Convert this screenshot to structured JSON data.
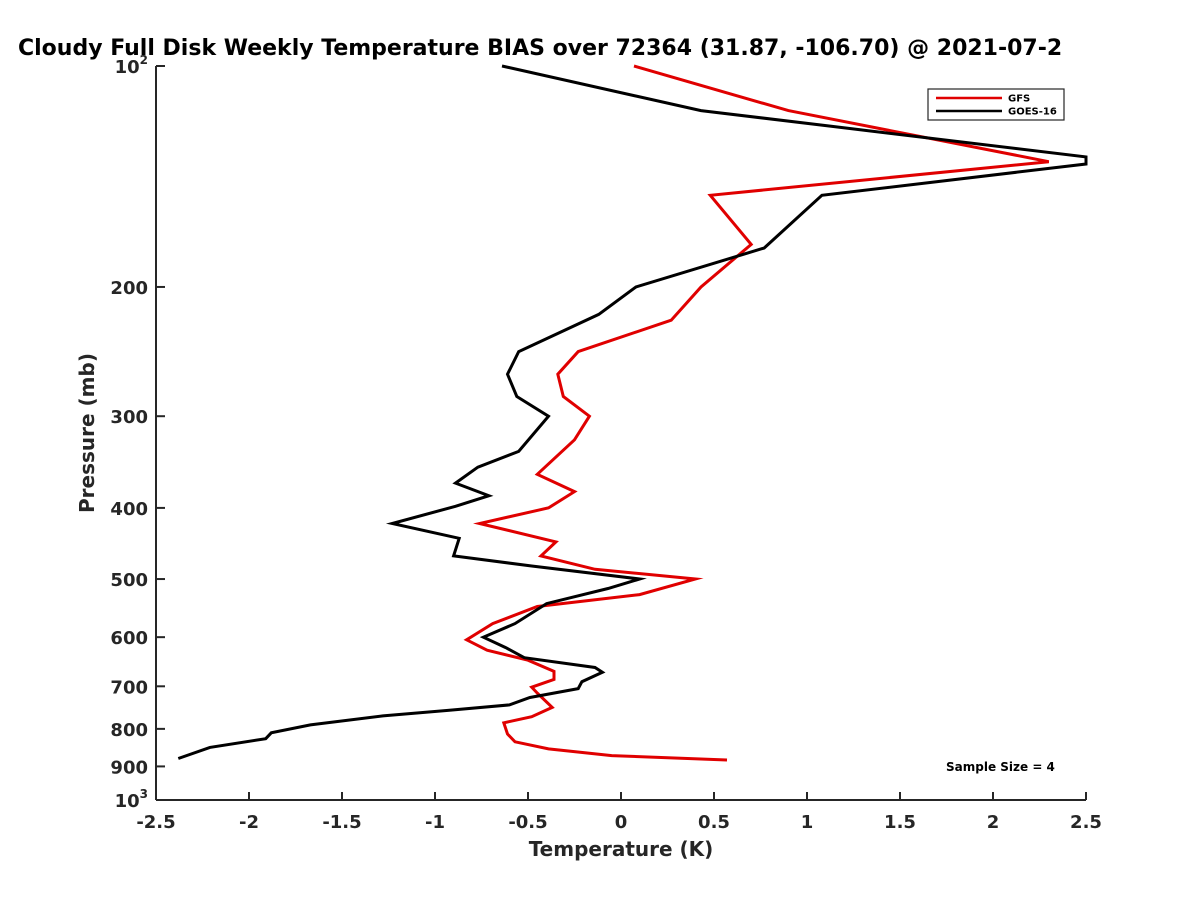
{
  "chart_data": {
    "type": "line",
    "title": "Cloudy Full Disk Weekly Temperature BIAS over 72364 (31.87, -106.70) @ 2021-07-2",
    "xlabel": "Temperature (K)",
    "ylabel": "Pressure (mb)",
    "xlim": [
      -2.5,
      2.5
    ],
    "ylim": [
      100,
      1000
    ],
    "y_scale": "log",
    "y_reversed": true,
    "grid": false,
    "legend_position": "top-right",
    "x_ticks": [
      "-2.5",
      "-2",
      "-1.5",
      "-1",
      "-0.5",
      "0",
      "0.5",
      "1",
      "1.5",
      "2",
      "2.5"
    ],
    "y_ticks": [
      {
        "value": 100,
        "base": "10",
        "exp": "2"
      },
      {
        "value": 200,
        "label": "200"
      },
      {
        "value": 300,
        "label": "300"
      },
      {
        "value": 400,
        "label": "400"
      },
      {
        "value": 500,
        "label": "500"
      },
      {
        "value": 600,
        "label": "600"
      },
      {
        "value": 700,
        "label": "700"
      },
      {
        "value": 800,
        "label": "800"
      },
      {
        "value": 900,
        "label": "900"
      },
      {
        "value": 1000,
        "base": "10",
        "exp": "3"
      }
    ],
    "series": [
      {
        "name": "GFS",
        "color": "#e00000",
        "points": [
          [
            0.07,
            100
          ],
          [
            0.9,
            115
          ],
          [
            2.3,
            135
          ],
          [
            0.48,
            150
          ],
          [
            0.7,
            175
          ],
          [
            0.43,
            200
          ],
          [
            0.27,
            222
          ],
          [
            -0.23,
            245
          ],
          [
            -0.34,
            263
          ],
          [
            -0.31,
            282
          ],
          [
            -0.17,
            300
          ],
          [
            -0.25,
            323
          ],
          [
            -0.45,
            360
          ],
          [
            -0.25,
            380
          ],
          [
            -0.39,
            400
          ],
          [
            -0.76,
            420
          ],
          [
            -0.35,
            445
          ],
          [
            -0.43,
            465
          ],
          [
            -0.14,
            485
          ],
          [
            0.4,
            500
          ],
          [
            0.1,
            525
          ],
          [
            -0.45,
            545
          ],
          [
            -0.69,
            575
          ],
          [
            -0.83,
            605
          ],
          [
            -0.72,
            625
          ],
          [
            -0.5,
            645
          ],
          [
            -0.36,
            668
          ],
          [
            -0.36,
            685
          ],
          [
            -0.48,
            702
          ],
          [
            -0.45,
            715
          ],
          [
            -0.37,
            748
          ],
          [
            -0.48,
            770
          ],
          [
            -0.63,
            785
          ],
          [
            -0.61,
            813
          ],
          [
            -0.57,
            833
          ],
          [
            -0.39,
            852
          ],
          [
            -0.05,
            870
          ],
          [
            0.57,
            882
          ]
        ]
      },
      {
        "name": "GOES-16",
        "color": "#000000",
        "points": [
          [
            -0.64,
            100
          ],
          [
            0.43,
            115
          ],
          [
            2.5,
            133
          ],
          [
            2.5,
            136
          ],
          [
            1.08,
            150
          ],
          [
            0.77,
            177
          ],
          [
            0.08,
            200
          ],
          [
            -0.12,
            218
          ],
          [
            -0.55,
            245
          ],
          [
            -0.61,
            263
          ],
          [
            -0.56,
            282
          ],
          [
            -0.39,
            300
          ],
          [
            -0.55,
            335
          ],
          [
            -0.77,
            352
          ],
          [
            -0.89,
            370
          ],
          [
            -0.71,
            385
          ],
          [
            -0.89,
            398
          ],
          [
            -1.23,
            420
          ],
          [
            -0.87,
            440
          ],
          [
            -0.9,
            465
          ],
          [
            -0.48,
            480
          ],
          [
            0.1,
            500
          ],
          [
            -0.07,
            515
          ],
          [
            -0.4,
            540
          ],
          [
            -0.57,
            575
          ],
          [
            -0.74,
            600
          ],
          [
            -0.62,
            620
          ],
          [
            -0.52,
            640
          ],
          [
            -0.14,
            660
          ],
          [
            -0.1,
            670
          ],
          [
            -0.21,
            690
          ],
          [
            -0.23,
            705
          ],
          [
            -0.49,
            725
          ],
          [
            -0.6,
            742
          ],
          [
            -0.93,
            755
          ],
          [
            -1.28,
            768
          ],
          [
            -1.67,
            790
          ],
          [
            -1.88,
            810
          ],
          [
            -1.91,
            825
          ],
          [
            -2.21,
            848
          ],
          [
            -2.38,
            878
          ]
        ]
      }
    ],
    "annotation": "Sample Size = 4"
  }
}
